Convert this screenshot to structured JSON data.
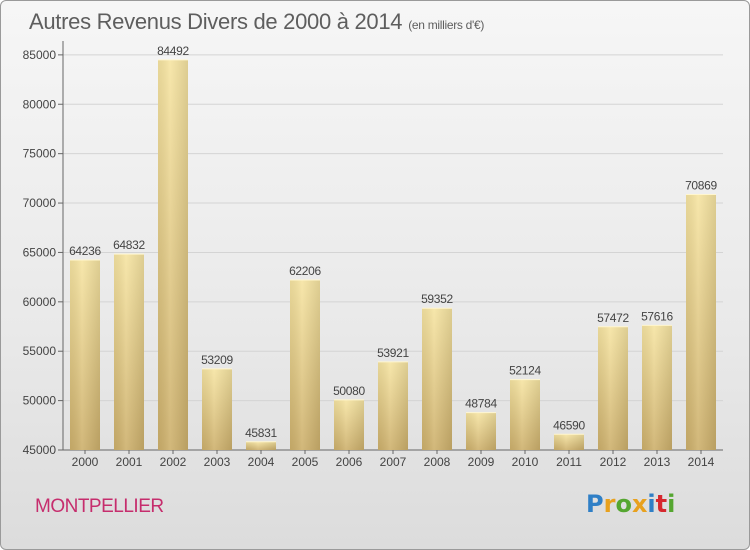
{
  "header": {
    "title": "Autres Revenus Divers de 2000 à 2014",
    "subtitle": "(en milliers d'€)"
  },
  "footer": {
    "city": "MONTPELLIER",
    "logo_text": "Proxiti",
    "logo_colors": [
      "#2f7fc6",
      "#e8a11e",
      "#55a630",
      "#e8a11e",
      "#2f7fc6",
      "#d6282e",
      "#55a630"
    ]
  },
  "colors": {
    "bar_light": "#f6e4a2",
    "bar_dark": "#cdb06c",
    "grid": "#d4d4d4",
    "axis_text": "#444444"
  },
  "chart_data": {
    "type": "bar",
    "title": "Autres Revenus Divers de 2000 à 2014",
    "subtitle": "(en milliers d'€)",
    "categories": [
      "2000",
      "2001",
      "2002",
      "2003",
      "2004",
      "2005",
      "2006",
      "2007",
      "2008",
      "2009",
      "2010",
      "2011",
      "2012",
      "2013",
      "2014"
    ],
    "values": [
      64236,
      64832,
      84492,
      53209,
      45831,
      62206,
      50080,
      53921,
      59352,
      48784,
      52124,
      46590,
      57472,
      57616,
      70869
    ],
    "data_labels": [
      "64236",
      "64832",
      "84492",
      "53209",
      "45831",
      "62206",
      "50080",
      "53921",
      "59352",
      "48784",
      "52124",
      "46590",
      "57472",
      "57616",
      "70869"
    ],
    "yticks": [
      45000,
      50000,
      55000,
      60000,
      65000,
      70000,
      75000,
      80000,
      85000
    ],
    "ytick_labels": [
      "45000",
      "50000",
      "55000",
      "60000",
      "65000",
      "70000",
      "75000",
      "80000",
      "85000"
    ],
    "ylim": [
      45000,
      86000
    ],
    "grid": true,
    "legend": "none"
  }
}
